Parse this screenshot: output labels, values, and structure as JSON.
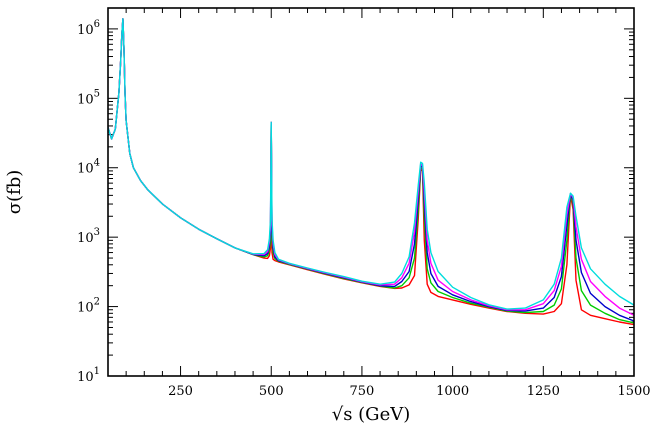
{
  "chart_data": {
    "type": "line",
    "xlabel": "√s (GeV)",
    "ylabel": "σ(fb)",
    "xlim": [
      50,
      1500
    ],
    "ylim": [
      10,
      2000000
    ],
    "yscale": "log",
    "grid": false,
    "x_ticks": [
      250,
      500,
      750,
      1000,
      1250,
      1500
    ],
    "y_ticks": [
      {
        "value": 10,
        "base": "10",
        "exp": "1"
      },
      {
        "value": 100,
        "base": "10",
        "exp": "2"
      },
      {
        "value": 1000,
        "base": "10",
        "exp": "3"
      },
      {
        "value": 10000,
        "base": "10",
        "exp": "4"
      },
      {
        "value": 100000,
        "base": "10",
        "exp": "5"
      },
      {
        "value": 1000000,
        "base": "10",
        "exp": "6"
      }
    ],
    "x": [
      50,
      60,
      70,
      80,
      85,
      88,
      91,
      94,
      97,
      100,
      110,
      120,
      140,
      160,
      200,
      250,
      300,
      350,
      400,
      450,
      480,
      490,
      495,
      498,
      500,
      502,
      505,
      510,
      520,
      550,
      600,
      650,
      700,
      750,
      800,
      840,
      860,
      880,
      895,
      905,
      912,
      917,
      922,
      930,
      940,
      960,
      1000,
      1050,
      1100,
      1150,
      1200,
      1250,
      1280,
      1300,
      1315,
      1325,
      1332,
      1340,
      1355,
      1380,
      1420,
      1460,
      1500
    ],
    "series": [
      {
        "color": "#ff0000",
        "values": [
          38000,
          26000,
          36000,
          120000,
          350000,
          800000,
          1400000,
          500000,
          120000,
          48000,
          16000,
          10000,
          6500,
          4800,
          3000,
          1900,
          1300,
          950,
          700,
          560,
          500,
          495,
          540,
          700,
          45000,
          600,
          480,
          460,
          440,
          400,
          340,
          290,
          250,
          220,
          195,
          183,
          185,
          205,
          280,
          1800,
          9500,
          9000,
          900,
          210,
          160,
          140,
          125,
          108,
          95,
          85,
          80,
          78,
          85,
          110,
          400,
          4000,
          2500,
          240,
          90,
          75,
          67,
          60,
          55
        ]
      },
      {
        "color": "#00cc00",
        "values": [
          38000,
          26000,
          36000,
          120000,
          350000,
          800000,
          1400000,
          500000,
          120000,
          48000,
          16000,
          10000,
          6500,
          4800,
          3000,
          1900,
          1300,
          950,
          700,
          560,
          520,
          540,
          650,
          900,
          45000,
          900,
          600,
          490,
          450,
          405,
          345,
          295,
          255,
          222,
          198,
          185,
          200,
          260,
          500,
          2500,
          9800,
          10000,
          2000,
          350,
          220,
          165,
          135,
          112,
          98,
          86,
          82,
          85,
          105,
          180,
          900,
          4100,
          3000,
          500,
          170,
          105,
          80,
          65,
          58
        ]
      },
      {
        "color": "#0000cc",
        "values": [
          38000,
          26000,
          36000,
          120000,
          350000,
          800000,
          1400000,
          500000,
          120000,
          48000,
          16000,
          10000,
          6500,
          4800,
          3000,
          1900,
          1300,
          950,
          700,
          565,
          540,
          580,
          750,
          1200,
          45000,
          1200,
          700,
          520,
          460,
          410,
          350,
          300,
          260,
          225,
          200,
          195,
          230,
          320,
          800,
          3500,
          10500,
          10500,
          3200,
          600,
          300,
          195,
          148,
          118,
          100,
          88,
          86,
          95,
          135,
          270,
          1500,
          4200,
          3400,
          900,
          310,
          155,
          100,
          75,
          62
        ]
      },
      {
        "color": "#ff00ff",
        "values": [
          38000,
          26000,
          36000,
          120000,
          350000,
          800000,
          1400000,
          500000,
          120000,
          48000,
          16000,
          10000,
          6500,
          4800,
          3000,
          1900,
          1300,
          950,
          700,
          570,
          560,
          620,
          850,
          1500,
          45000,
          1500,
          800,
          560,
          470,
          415,
          355,
          305,
          265,
          228,
          205,
          210,
          260,
          420,
          1200,
          4500,
          11200,
          11000,
          4500,
          900,
          420,
          240,
          165,
          125,
          103,
          90,
          90,
          110,
          170,
          380,
          2100,
          4250,
          3700,
          1400,
          480,
          230,
          140,
          95,
          75
        ]
      },
      {
        "color": "#00dddd",
        "values": [
          38000,
          26000,
          36000,
          120000,
          350000,
          800000,
          1400000,
          500000,
          120000,
          48000,
          16000,
          10000,
          6500,
          4800,
          3000,
          1900,
          1300,
          950,
          700,
          575,
          580,
          660,
          950,
          1800,
          45000,
          1800,
          900,
          600,
          480,
          420,
          360,
          310,
          270,
          232,
          210,
          225,
          300,
          520,
          1600,
          5500,
          12000,
          11500,
          6000,
          1300,
          600,
          320,
          190,
          135,
          106,
          92,
          95,
          125,
          210,
          500,
          2700,
          4300,
          3900,
          2000,
          700,
          350,
          210,
          140,
          105
        ]
      }
    ]
  }
}
